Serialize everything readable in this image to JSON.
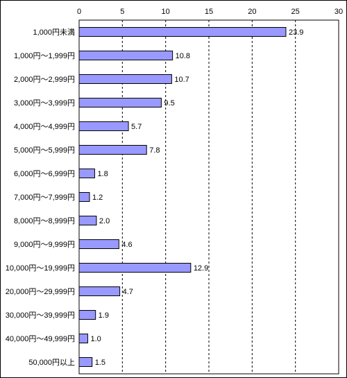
{
  "chart_data": {
    "type": "bar",
    "orientation": "horizontal",
    "categories": [
      "1,000円未満",
      "1,000円～1,999円",
      "2,000円～2,999円",
      "3,000円～3,999円",
      "4,000円～4,999円",
      "5,000円～5,999円",
      "6,000円～6,999円",
      "7,000円～7,999円",
      "8,000円～8,999円",
      "9,000円～9,999円",
      "10,000円～19,999円",
      "20,000円～29,999円",
      "30,000円～39,999円",
      "40,000円～49,999円",
      "50,000円以上"
    ],
    "values": [
      23.9,
      10.8,
      10.7,
      9.5,
      5.7,
      7.8,
      1.8,
      1.2,
      2.0,
      4.6,
      12.9,
      4.7,
      1.9,
      1.0,
      1.5
    ],
    "data_labels": [
      "23.9",
      "10.8",
      "10.7",
      "9.5",
      "5.7",
      "7.8",
      "1.8",
      "1.2",
      "2.0",
      "4.6",
      "12.9",
      "4.7",
      "1.9",
      "1.0",
      "1.5"
    ],
    "x_ticks": [
      "0",
      "5",
      "10",
      "15",
      "20",
      "25",
      "30"
    ],
    "xlim": [
      0,
      30
    ],
    "title": "",
    "xlabel": "",
    "ylabel": "",
    "grid": "vertical-dashed",
    "legend": "none",
    "bar_color": "#9999ff",
    "bar_edge_color": "#000000"
  }
}
